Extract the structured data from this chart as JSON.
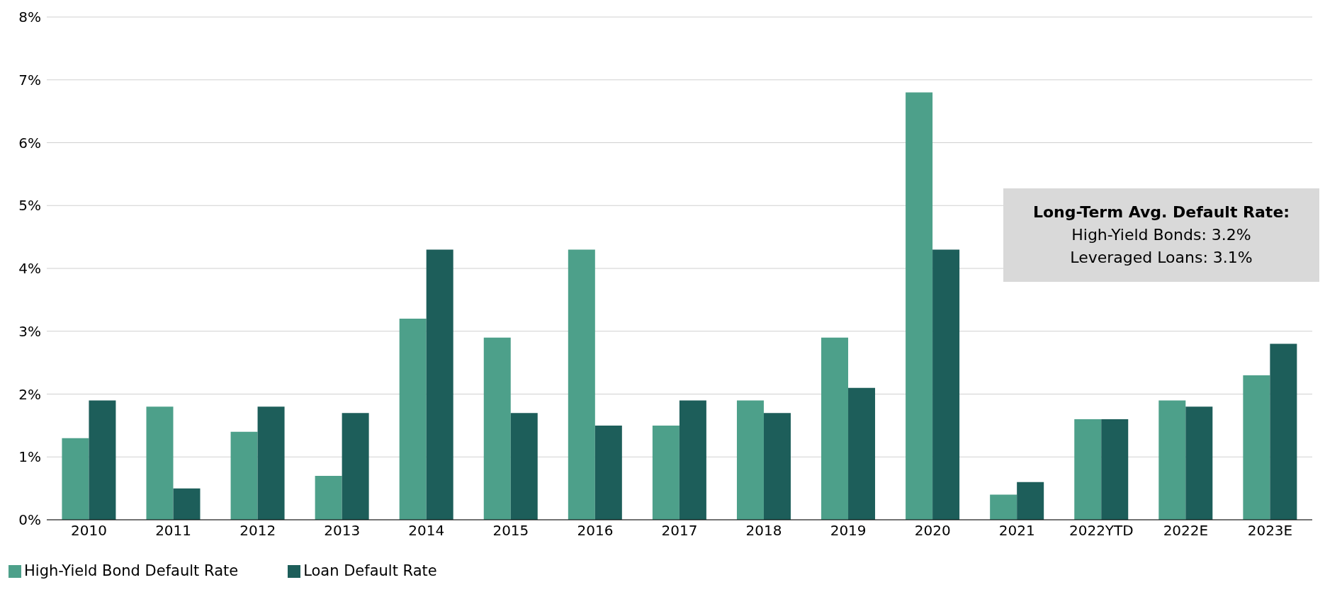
{
  "chart_data": {
    "type": "bar",
    "categories": [
      "2010",
      "2011",
      "2012",
      "2013",
      "2014",
      "2015",
      "2016",
      "2017",
      "2018",
      "2019",
      "2020",
      "2021",
      "2022YTD",
      "2022E",
      "2023E"
    ],
    "series": [
      {
        "name": "High-Yield Bond Default Rate",
        "color": "#4da08a",
        "values": [
          1.3,
          1.8,
          1.4,
          0.7,
          3.2,
          2.9,
          4.3,
          1.5,
          1.9,
          2.9,
          6.8,
          0.4,
          1.6,
          1.9,
          2.3
        ]
      },
      {
        "name": "Loan Default Rate",
        "color": "#1d5e5a",
        "values": [
          1.9,
          0.5,
          1.8,
          1.7,
          4.3,
          1.7,
          1.5,
          1.9,
          1.7,
          2.1,
          4.3,
          0.6,
          1.6,
          1.8,
          2.8
        ]
      }
    ],
    "ylim": [
      0,
      8
    ],
    "yticks": [
      {
        "value": 0,
        "label": "0%"
      },
      {
        "value": 1,
        "label": "1%"
      },
      {
        "value": 2,
        "label": "2%"
      },
      {
        "value": 3,
        "label": "3%"
      },
      {
        "value": 4,
        "label": "4%"
      },
      {
        "value": 5,
        "label": "5%"
      },
      {
        "value": 6,
        "label": "6%"
      },
      {
        "value": 7,
        "label": "7%"
      },
      {
        "value": 8,
        "label": "8%"
      }
    ],
    "grid": "y",
    "legend": "bottom left",
    "annotations": [
      "Long-Term Avg. Default Rate:",
      "High-Yield Bonds: 3.2%",
      "Leveraged Loans: 3.1%"
    ]
  }
}
